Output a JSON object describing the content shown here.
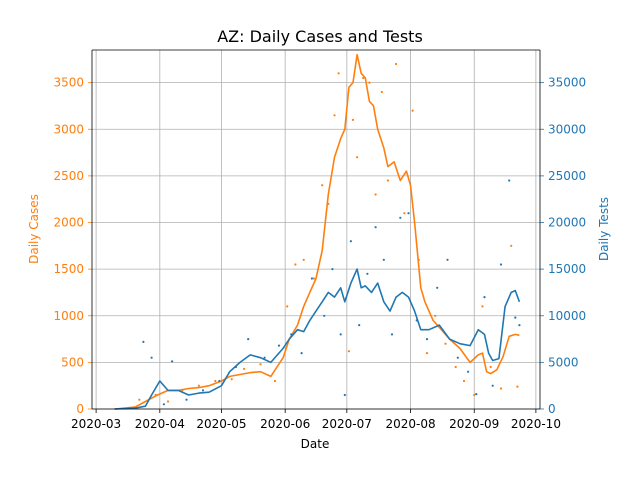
{
  "chart_data": {
    "type": "line",
    "title": "AZ: Daily Cases and Tests",
    "xlabel": "Date",
    "ylabel_left": "Daily Cases",
    "ylabel_right": "Daily Tests",
    "x_ticks": [
      "2020-03",
      "2020-04",
      "2020-05",
      "2020-06",
      "2020-07",
      "2020-08",
      "2020-09",
      "2020-10"
    ],
    "x_range": [
      "2020-02-28",
      "2020-10-03"
    ],
    "ylim_left": [
      0,
      3850
    ],
    "ylim_right": [
      0,
      38500
    ],
    "yticks_left": [
      0,
      500,
      1000,
      1500,
      2000,
      2500,
      3000,
      3500
    ],
    "yticks_right": [
      0,
      5000,
      10000,
      15000,
      20000,
      25000,
      30000,
      35000
    ],
    "grid": true,
    "colors": {
      "cases": "#ff7f0e",
      "tests": "#1f77b4",
      "grid": "#b0b0b0",
      "axis": "#000000"
    },
    "series": [
      {
        "axis": "left",
        "color": "#ff7f0e",
        "style": "line",
        "x": [
          "2020-03-10",
          "2020-03-20",
          "2020-03-25",
          "2020-03-30",
          "2020-04-05",
          "2020-04-10",
          "2020-04-15",
          "2020-04-20",
          "2020-04-25",
          "2020-05-01",
          "2020-05-05",
          "2020-05-10",
          "2020-05-15",
          "2020-05-20",
          "2020-05-25",
          "2020-05-31",
          "2020-06-03",
          "2020-06-07",
          "2020-06-10",
          "2020-06-13",
          "2020-06-16",
          "2020-06-19",
          "2020-06-22",
          "2020-06-25",
          "2020-06-28",
          "2020-06-30",
          "2020-07-02",
          "2020-07-04",
          "2020-07-06",
          "2020-07-08",
          "2020-07-10",
          "2020-07-12",
          "2020-07-14",
          "2020-07-16",
          "2020-07-19",
          "2020-07-21",
          "2020-07-24",
          "2020-07-27",
          "2020-07-30",
          "2020-08-01",
          "2020-08-03",
          "2020-08-06",
          "2020-08-08",
          "2020-08-12",
          "2020-08-16",
          "2020-08-20",
          "2020-08-25",
          "2020-08-30",
          "2020-09-03",
          "2020-09-05",
          "2020-09-07",
          "2020-09-09",
          "2020-09-12",
          "2020-09-15",
          "2020-09-18",
          "2020-09-21",
          "2020-09-23"
        ],
        "y": [
          0,
          20,
          80,
          140,
          200,
          200,
          220,
          230,
          250,
          300,
          350,
          370,
          390,
          400,
          350,
          550,
          750,
          900,
          1100,
          1250,
          1400,
          1700,
          2300,
          2700,
          2900,
          3000,
          3450,
          3500,
          3800,
          3600,
          3550,
          3300,
          3250,
          3000,
          2800,
          2600,
          2650,
          2450,
          2550,
          2400,
          2000,
          1300,
          1150,
          950,
          850,
          750,
          650,
          500,
          580,
          600,
          400,
          380,
          420,
          560,
          780,
          800,
          790
        ]
      },
      {
        "axis": "right",
        "color": "#1f77b4",
        "style": "line",
        "x": [
          "2020-03-10",
          "2020-03-20",
          "2020-03-25",
          "2020-03-28",
          "2020-04-01",
          "2020-04-05",
          "2020-04-10",
          "2020-04-15",
          "2020-04-20",
          "2020-04-25",
          "2020-05-01",
          "2020-05-05",
          "2020-05-10",
          "2020-05-15",
          "2020-05-20",
          "2020-05-25",
          "2020-05-31",
          "2020-06-03",
          "2020-06-07",
          "2020-06-10",
          "2020-06-13",
          "2020-06-16",
          "2020-06-19",
          "2020-06-22",
          "2020-06-25",
          "2020-06-28",
          "2020-06-30",
          "2020-07-03",
          "2020-07-06",
          "2020-07-08",
          "2020-07-10",
          "2020-07-13",
          "2020-07-16",
          "2020-07-19",
          "2020-07-22",
          "2020-07-25",
          "2020-07-28",
          "2020-07-31",
          "2020-08-03",
          "2020-08-06",
          "2020-08-10",
          "2020-08-15",
          "2020-08-20",
          "2020-08-25",
          "2020-08-30",
          "2020-09-03",
          "2020-09-06",
          "2020-09-08",
          "2020-09-10",
          "2020-09-13",
          "2020-09-16",
          "2020-09-19",
          "2020-09-21",
          "2020-09-23"
        ],
        "y": [
          0,
          100,
          300,
          1500,
          3000,
          2000,
          2000,
          1500,
          1700,
          1800,
          2500,
          4000,
          5000,
          5800,
          5500,
          5000,
          6500,
          7500,
          8500,
          8300,
          9500,
          10500,
          11500,
          12500,
          12000,
          13000,
          11500,
          13500,
          15000,
          13000,
          13200,
          12500,
          13500,
          11500,
          10500,
          12000,
          12500,
          12000,
          10500,
          8500,
          8500,
          9000,
          7500,
          7000,
          6800,
          8500,
          8000,
          6000,
          5200,
          5400,
          11000,
          12500,
          12700,
          11500
        ]
      },
      {
        "axis": "left",
        "color": "#ff7f0e",
        "style": "scatter",
        "x": [
          "2020-03-22",
          "2020-03-30",
          "2020-04-05",
          "2020-04-12",
          "2020-04-20",
          "2020-04-28",
          "2020-05-06",
          "2020-05-12",
          "2020-05-20",
          "2020-05-27",
          "2020-06-02",
          "2020-06-06",
          "2020-06-10",
          "2020-06-15",
          "2020-06-19",
          "2020-06-22",
          "2020-06-25",
          "2020-06-27",
          "2020-06-30",
          "2020-07-02",
          "2020-07-04",
          "2020-07-06",
          "2020-07-09",
          "2020-07-12",
          "2020-07-15",
          "2020-07-18",
          "2020-07-21",
          "2020-07-25",
          "2020-07-29",
          "2020-08-02",
          "2020-08-05",
          "2020-08-09",
          "2020-08-13",
          "2020-08-18",
          "2020-08-23",
          "2020-08-27",
          "2020-09-01",
          "2020-09-05",
          "2020-09-09",
          "2020-09-14",
          "2020-09-19",
          "2020-09-22"
        ],
        "y": [
          100,
          150,
          80,
          200,
          250,
          300,
          320,
          430,
          480,
          300,
          1100,
          1550,
          1600,
          1400,
          2400,
          2200,
          3150,
          3600,
          3000,
          620,
          3100,
          2700,
          3550,
          3500,
          2300,
          3400,
          2450,
          3700,
          2100,
          3200,
          1600,
          600,
          1000,
          700,
          450,
          300,
          150,
          1100,
          450,
          220,
          1750,
          240
        ]
      },
      {
        "axis": "right",
        "color": "#1f77b4",
        "style": "scatter",
        "x": [
          "2020-03-24",
          "2020-03-28",
          "2020-04-03",
          "2020-04-07",
          "2020-04-14",
          "2020-04-22",
          "2020-04-30",
          "2020-05-08",
          "2020-05-14",
          "2020-05-22",
          "2020-05-29",
          "2020-06-04",
          "2020-06-09",
          "2020-06-14",
          "2020-06-20",
          "2020-06-24",
          "2020-06-28",
          "2020-06-30",
          "2020-07-03",
          "2020-07-07",
          "2020-07-11",
          "2020-07-15",
          "2020-07-19",
          "2020-07-23",
          "2020-07-27",
          "2020-07-31",
          "2020-08-04",
          "2020-08-09",
          "2020-08-14",
          "2020-08-19",
          "2020-08-24",
          "2020-08-29",
          "2020-09-02",
          "2020-09-06",
          "2020-09-10",
          "2020-09-14",
          "2020-09-18",
          "2020-09-21",
          "2020-09-23"
        ],
        "y": [
          7200,
          5500,
          500,
          5100,
          1000,
          2000,
          3000,
          4500,
          7500,
          5500,
          6800,
          8000,
          6000,
          14000,
          10000,
          15000,
          8000,
          1500,
          18000,
          9000,
          14500,
          19500,
          16000,
          8000,
          20500,
          21000,
          9500,
          7500,
          13000,
          16000,
          5500,
          4000,
          1600,
          12000,
          2500,
          15500,
          24500,
          9800,
          9000
        ]
      }
    ]
  }
}
